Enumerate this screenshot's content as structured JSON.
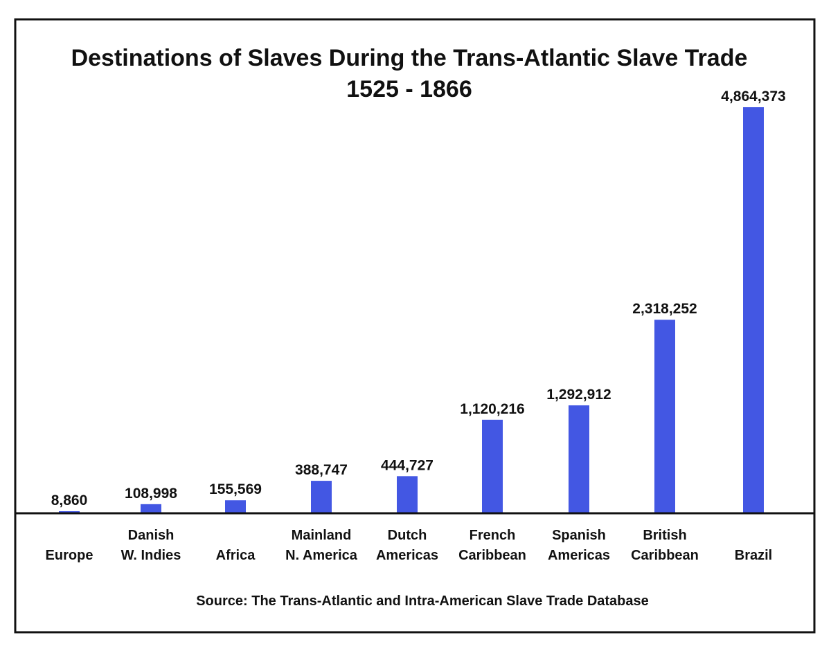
{
  "chart_data": {
    "type": "bar",
    "title": "Destinations of Slaves During the Trans-Atlantic Slave Trade",
    "subtitle": "1525 - 1866",
    "source": "Source: The Trans-Atlantic and Intra-American Slave Trade Database",
    "categories": [
      [
        "Europe"
      ],
      [
        "Danish",
        "W. Indies"
      ],
      [
        "Africa"
      ],
      [
        "Mainland",
        "N. America"
      ],
      [
        "Dutch",
        "Americas"
      ],
      [
        "French",
        "Caribbean"
      ],
      [
        "Spanish",
        "Americas"
      ],
      [
        "British",
        "Caribbean"
      ],
      [
        "Brazil"
      ]
    ],
    "values": [
      8860,
      108998,
      155569,
      388747,
      444727,
      1120216,
      1292912,
      2318252,
      4864373
    ],
    "value_labels": [
      "8,860",
      "108,998",
      "155,569",
      "388,747",
      "444,727",
      "1,120,216",
      "1,292,912",
      "2,318,252",
      "4,864,373"
    ],
    "xlabel": "",
    "ylabel": "",
    "bar_color": "#4357e3",
    "grid": false,
    "legend": "none"
  }
}
